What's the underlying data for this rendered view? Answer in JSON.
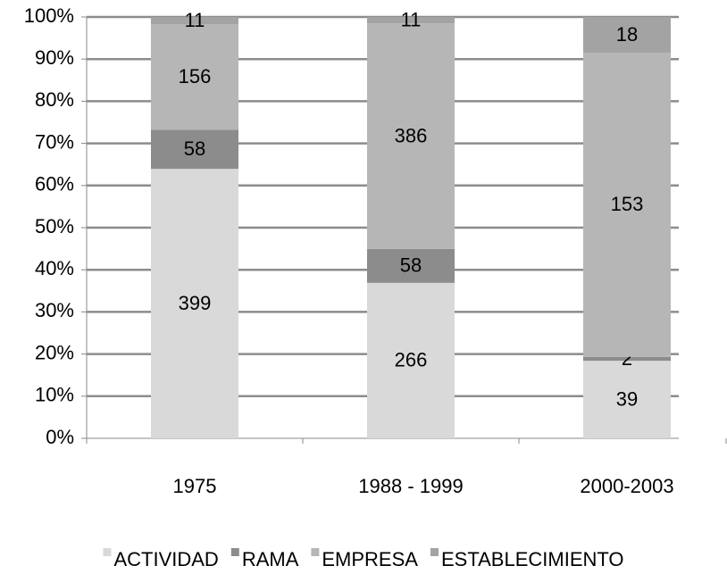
{
  "chart_data": {
    "type": "bar",
    "stacking": "percent",
    "categories": [
      "1975",
      "1988 - 1999",
      "2000-2003"
    ],
    "series": [
      {
        "name": "ACTIVIDAD",
        "color": "#d9d9d9",
        "values": [
          399,
          266,
          39
        ]
      },
      {
        "name": "RAMA",
        "color": "#8c8c8c",
        "values": [
          58,
          58,
          2
        ]
      },
      {
        "name": "EMPRESA",
        "color": "#b6b6b6",
        "values": [
          156,
          386,
          153
        ]
      },
      {
        "name": "ESTABLECIMIENTO",
        "color": "#a3a3a3",
        "values": [
          11,
          11,
          18
        ]
      }
    ],
    "ylim": [
      0,
      100
    ],
    "yticks": [
      {
        "value": 0,
        "label": "0%"
      },
      {
        "value": 10,
        "label": "10%"
      },
      {
        "value": 20,
        "label": "20%"
      },
      {
        "value": 30,
        "label": "30%"
      },
      {
        "value": 40,
        "label": "40%"
      },
      {
        "value": 50,
        "label": "50%"
      },
      {
        "value": 60,
        "label": "60%"
      },
      {
        "value": 70,
        "label": "70%"
      },
      {
        "value": 80,
        "label": "80%"
      },
      {
        "value": 90,
        "label": "90%"
      },
      {
        "value": 100,
        "label": "100%"
      }
    ],
    "grid": true,
    "legend": "bottom"
  }
}
